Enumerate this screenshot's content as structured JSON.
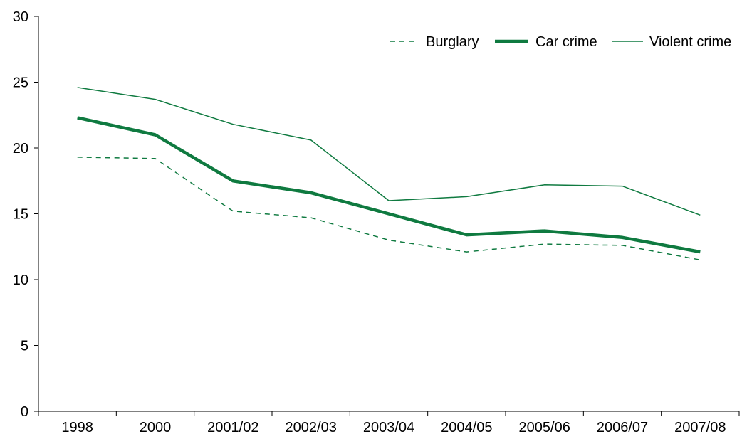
{
  "chart_data": {
    "type": "line",
    "title": "",
    "xlabel": "",
    "ylabel": "",
    "categories": [
      "1998",
      "2000",
      "2001/02",
      "2002/03",
      "2003/04",
      "2004/05",
      "2005/06",
      "2006/07",
      "2007/08"
    ],
    "ylim": [
      0,
      30
    ],
    "yticks": [
      "0",
      "5",
      "10",
      "15",
      "20",
      "25",
      "30"
    ],
    "grid": false,
    "legend_position": "top-right",
    "series": [
      {
        "name": "Burglary",
        "style": "dashed",
        "color": "#0f7a40",
        "values": [
          19.3,
          19.2,
          15.2,
          14.7,
          13.0,
          12.1,
          12.7,
          12.6,
          11.5
        ]
      },
      {
        "name": "Car crime",
        "style": "thick",
        "color": "#0f7a40",
        "values": [
          22.3,
          21.0,
          17.5,
          16.6,
          15.0,
          13.4,
          13.7,
          13.2,
          12.1
        ]
      },
      {
        "name": "Violent crime",
        "style": "thin",
        "color": "#0f7a40",
        "values": [
          24.6,
          23.7,
          21.8,
          20.6,
          16.0,
          16.3,
          17.2,
          17.1,
          14.9
        ]
      }
    ]
  }
}
